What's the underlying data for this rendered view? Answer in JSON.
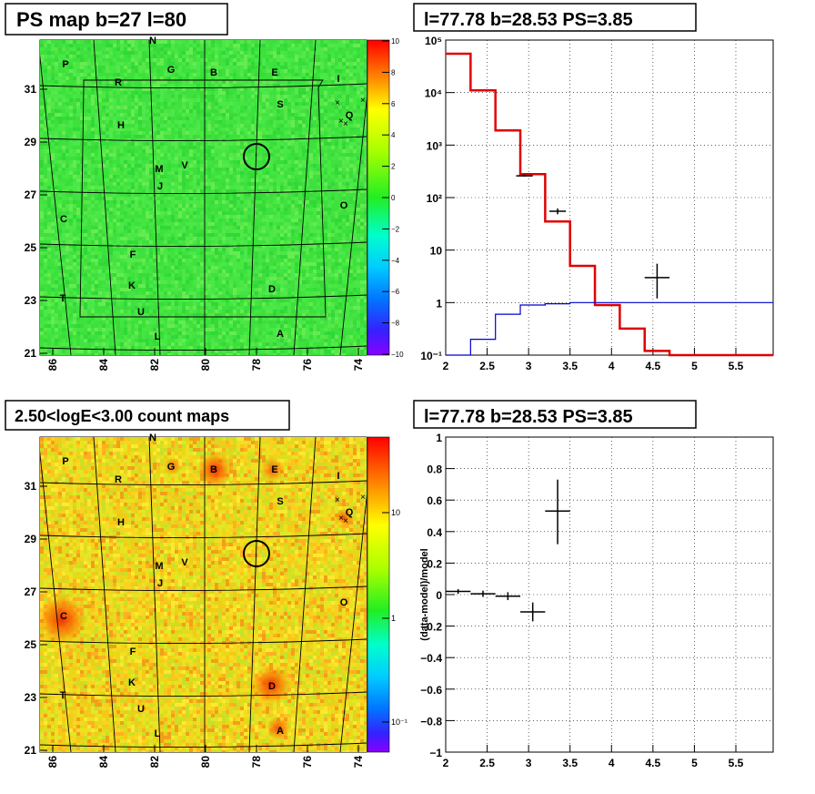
{
  "panels": {
    "tl_title": "PS map b=27 l=80",
    "tr_title": "l=77.78 b=28.53 PS=3.85",
    "bl_title": "2.50<logE<3.00 count maps",
    "br_title": "l=77.78 b=28.53 PS=3.85"
  },
  "chart_data": [
    {
      "type": "heatmap",
      "title": "PS map b=27 l=80",
      "x_ticks": [
        "86",
        "84",
        "82",
        "80",
        "78",
        "76",
        "74"
      ],
      "y_ticks": [
        "31",
        "29",
        "27",
        "25",
        "23",
        "21"
      ],
      "xlim": [
        86.5,
        73.5
      ],
      "ylim": [
        21,
        33
      ],
      "colorbar_ticks": [
        "10",
        "8",
        "6",
        "4",
        "2",
        "0",
        "−2",
        "−4",
        "−6",
        "−8",
        "−10"
      ],
      "colorbar_range": [
        -10,
        10
      ],
      "source_labels": [
        "N",
        "P",
        "G",
        "B",
        "E",
        "I",
        "R",
        "S",
        "Q",
        "H",
        "M",
        "V",
        "J",
        "O",
        "C",
        "F",
        "K",
        "D",
        "T",
        "U",
        "L",
        "A"
      ],
      "marker_circle": {
        "l": 77.78,
        "b": 28.53
      }
    },
    {
      "type": "line",
      "title": "l=77.78 b=28.53 PS=3.85",
      "x_ticks": [
        "2",
        "2.5",
        "3",
        "3.5",
        "4",
        "4.5",
        "5",
        "5.5"
      ],
      "y_ticks": [
        "10⁻¹",
        "1",
        "10",
        "10²",
        "10³",
        "10⁴",
        "10⁵"
      ],
      "xlim": [
        2,
        5.95
      ],
      "ylim": [
        0.1,
        100000
      ],
      "yscale": "log",
      "grid": true,
      "series": [
        {
          "color": "#e00000",
          "bin_edges": [
            2.0,
            2.3,
            2.6,
            2.9,
            3.2,
            3.5,
            3.8,
            4.1,
            4.4,
            4.7,
            5.95
          ],
          "values": [
            55000,
            11000,
            1900,
            280,
            35,
            5,
            0.9,
            0.32,
            0.12,
            0.1
          ]
        },
        {
          "color": "#0000cc",
          "bin_edges": [
            2.0,
            2.3,
            2.6,
            2.9,
            3.2,
            3.5,
            3.8,
            4.1,
            4.4,
            4.7,
            5.95
          ],
          "values": [
            0.05,
            0.2,
            0.6,
            0.9,
            0.95,
            1.0,
            1.0,
            1.0,
            1.0,
            1.0
          ]
        },
        {
          "color": "#000000",
          "points": [
            {
              "x": 2.95,
              "y": 260,
              "xerr": 0.1,
              "ylo": 250,
              "yhi": 275
            },
            {
              "x": 3.35,
              "y": 55,
              "xerr": 0.1,
              "ylo": 48,
              "yhi": 62
            },
            {
              "x": 4.55,
              "y": 3.0,
              "xerr": 0.15,
              "ylo": 1.2,
              "yhi": 5.5
            }
          ]
        }
      ]
    },
    {
      "type": "heatmap",
      "title": "2.50<logE<3.00 count maps",
      "x_ticks": [
        "86",
        "84",
        "82",
        "80",
        "78",
        "76",
        "74"
      ],
      "y_ticks": [
        "31",
        "29",
        "27",
        "25",
        "23",
        "21"
      ],
      "colorbar_ticks": [
        "10",
        "1",
        "10⁻¹"
      ],
      "colorbar_scale": "log",
      "source_labels": [
        "N",
        "P",
        "G",
        "B",
        "E",
        "I",
        "R",
        "S",
        "Q",
        "H",
        "M",
        "V",
        "J",
        "O",
        "C",
        "F",
        "K",
        "D",
        "T",
        "U",
        "L",
        "A"
      ]
    },
    {
      "type": "scatter",
      "title": "l=77.78 b=28.53 PS=3.85",
      "ylabel": "(data-model)/model",
      "x_ticks": [
        "2",
        "2.5",
        "3",
        "3.5",
        "4",
        "4.5",
        "5",
        "5.5"
      ],
      "y_ticks": [
        "1",
        "0.8",
        "0.6",
        "0.4",
        "0.2",
        "0",
        "−0.2",
        "−0.4",
        "−0.6",
        "−0.8",
        "−1"
      ],
      "xlim": [
        2,
        5.95
      ],
      "ylim": [
        -1,
        1
      ],
      "grid": true,
      "points": [
        {
          "x": 2.15,
          "y": 0.02,
          "xerr": 0.15,
          "ylo": 0.005,
          "yhi": 0.035
        },
        {
          "x": 2.45,
          "y": 0.005,
          "xerr": 0.15,
          "ylo": -0.015,
          "yhi": 0.025
        },
        {
          "x": 2.75,
          "y": -0.01,
          "xerr": 0.15,
          "ylo": -0.035,
          "yhi": 0.015
        },
        {
          "x": 3.05,
          "y": -0.11,
          "xerr": 0.15,
          "ylo": -0.17,
          "yhi": -0.05
        },
        {
          "x": 3.35,
          "y": 0.53,
          "xerr": 0.15,
          "ylo": 0.32,
          "yhi": 0.73
        }
      ]
    }
  ]
}
